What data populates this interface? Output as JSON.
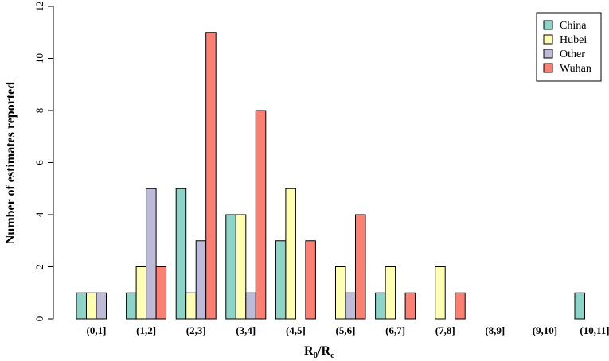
{
  "chart_data": {
    "type": "bar",
    "title": "",
    "xlabel": "R0/Rc",
    "xlabel_main": "R",
    "xlabel_sub1": "0",
    "xlabel_sep": "/R",
    "xlabel_sub2": "c",
    "ylabel": "Number of estimates reported",
    "ylim": [
      0,
      12
    ],
    "yticks": [
      0,
      2,
      4,
      6,
      8,
      10,
      12
    ],
    "categories": [
      "(0,1]",
      "(1,2]",
      "(2,3]",
      "(3,4]",
      "(4,5]",
      "(5,6]",
      "(6,7]",
      "(7,8]",
      "(8,9]",
      "(9,10]",
      "(10,11]"
    ],
    "series": [
      {
        "name": "China",
        "color": "#8DD3C7",
        "values": [
          1,
          1,
          5,
          4,
          3,
          0,
          1,
          0,
          0,
          0,
          1
        ]
      },
      {
        "name": "Hubei",
        "color": "#FFFFB3",
        "values": [
          1,
          2,
          1,
          4,
          5,
          2,
          2,
          2,
          0,
          0,
          0
        ]
      },
      {
        "name": "Other",
        "color": "#BEBADA",
        "values": [
          1,
          5,
          3,
          1,
          0,
          1,
          0,
          0,
          0,
          0,
          0
        ]
      },
      {
        "name": "Wuhan",
        "color": "#FB8072",
        "values": [
          0,
          2,
          11,
          8,
          3,
          4,
          1,
          1,
          0,
          0,
          0
        ]
      }
    ],
    "grid": false,
    "legend_position": "top-right"
  }
}
